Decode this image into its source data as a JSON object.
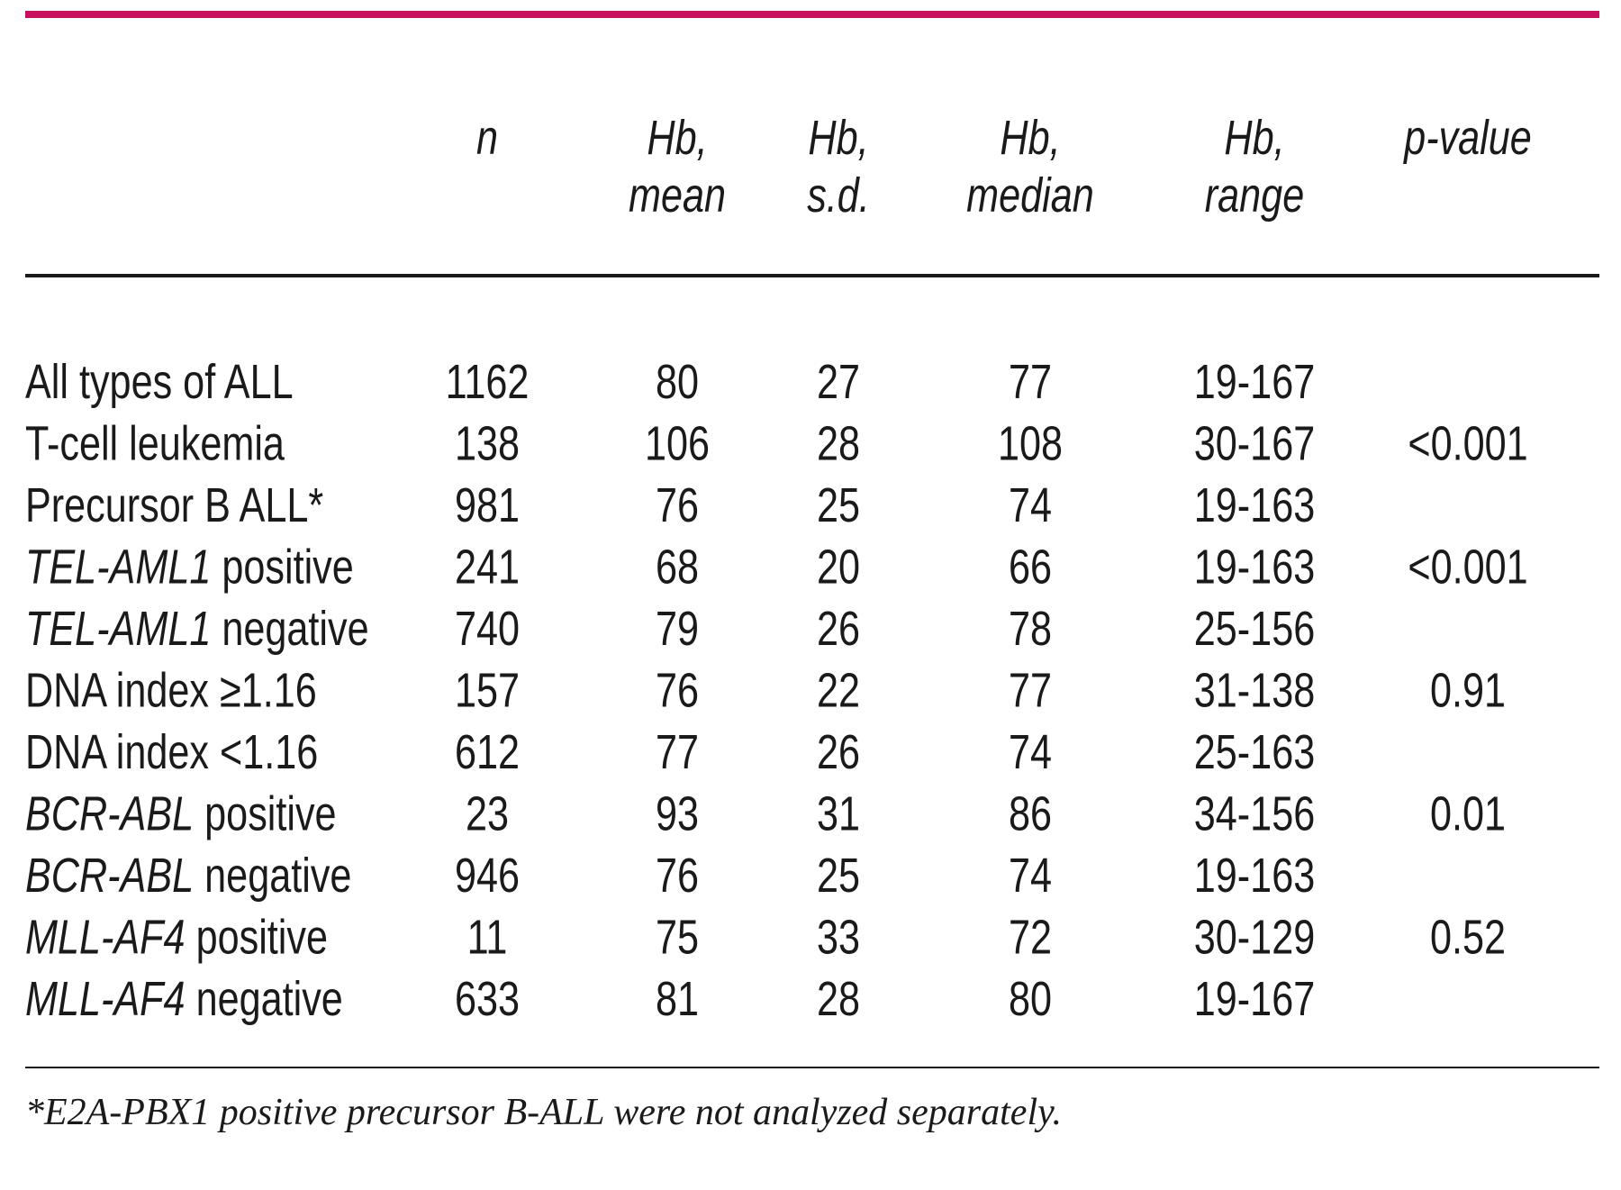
{
  "table": {
    "header": [
      [
        "n"
      ],
      [
        "Hb,",
        "mean"
      ],
      [
        "Hb,",
        "s.d."
      ],
      [
        "Hb,",
        "median"
      ],
      [
        "Hb,",
        "range"
      ],
      [
        "p-value"
      ]
    ],
    "rows": [
      [
        {
          "text": "All types of ALL"
        },
        1162,
        80,
        27,
        77,
        "19-167",
        null
      ],
      [
        {
          "text": "T-cell leukemia"
        },
        138,
        106,
        28,
        108,
        "30-167",
        "<0.001"
      ],
      [
        {
          "text": "Precursor B ALL*"
        },
        981,
        76,
        25,
        74,
        "19-163",
        null
      ],
      [
        {
          "italic": "TEL-AML1",
          "text": "positive"
        },
        241,
        68,
        20,
        66,
        "19-163",
        "<0.001"
      ],
      [
        {
          "italic": "TEL-AML1",
          "text": "negative"
        },
        740,
        79,
        26,
        78,
        "25-156",
        null
      ],
      [
        {
          "text": "DNA index ≥1.16"
        },
        157,
        76,
        22,
        77,
        "31-138",
        0.91
      ],
      [
        {
          "text": "DNA index <1.16"
        },
        612,
        77,
        26,
        74,
        "25-163",
        null
      ],
      [
        {
          "italic": "BCR-ABL",
          "text": "positive"
        },
        23,
        93,
        31,
        86,
        "34-156",
        0.01
      ],
      [
        {
          "italic": "BCR-ABL",
          "text": "negative"
        },
        946,
        76,
        25,
        74,
        "19-163",
        null
      ],
      [
        {
          "italic": "MLL-AF4",
          "text": "positive"
        },
        11,
        75,
        33,
        72,
        "30-129",
        0.52
      ],
      [
        {
          "italic": "MLL-AF4",
          "text": "negative"
        },
        633,
        81,
        28,
        80,
        "19-167",
        null
      ]
    ],
    "footnote": "*E2A-PBX1 positive precursor B-ALL were not analyzed separately."
  }
}
